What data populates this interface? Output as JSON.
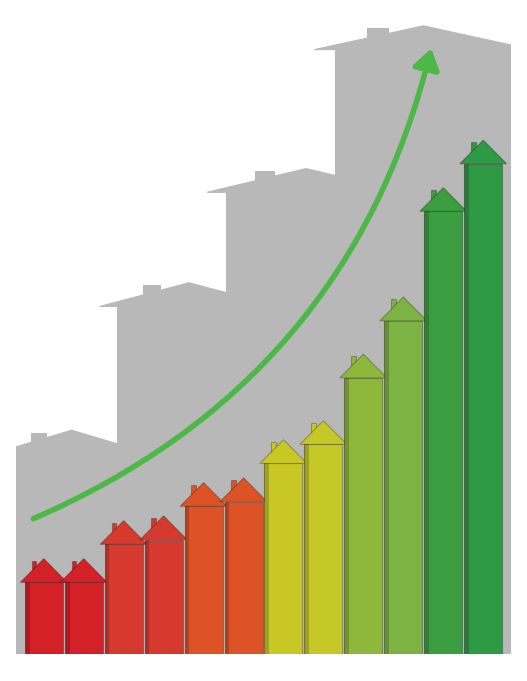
{
  "chart_data": {
    "type": "bar",
    "categories": [
      null,
      null,
      null,
      null,
      null,
      null,
      null,
      null,
      null,
      null,
      null,
      null
    ],
    "values": [
      100,
      100,
      140,
      145,
      180,
      185,
      225,
      245,
      315,
      375,
      490,
      540
    ],
    "colors": [
      "#d42027",
      "#d42027",
      "#d63a2f",
      "#d63a2f",
      "#dd5326",
      "#dd5326",
      "#c8c824",
      "#c5c827",
      "#8db83a",
      "#7cb342",
      "#3a9e40",
      "#2f9a44"
    ],
    "background": {
      "values": [
        235,
        390,
        510,
        660
      ],
      "color": "#b8b8b8"
    },
    "ylim": [
      0,
      680
    ],
    "tick_labels": false,
    "grid": false
  }
}
